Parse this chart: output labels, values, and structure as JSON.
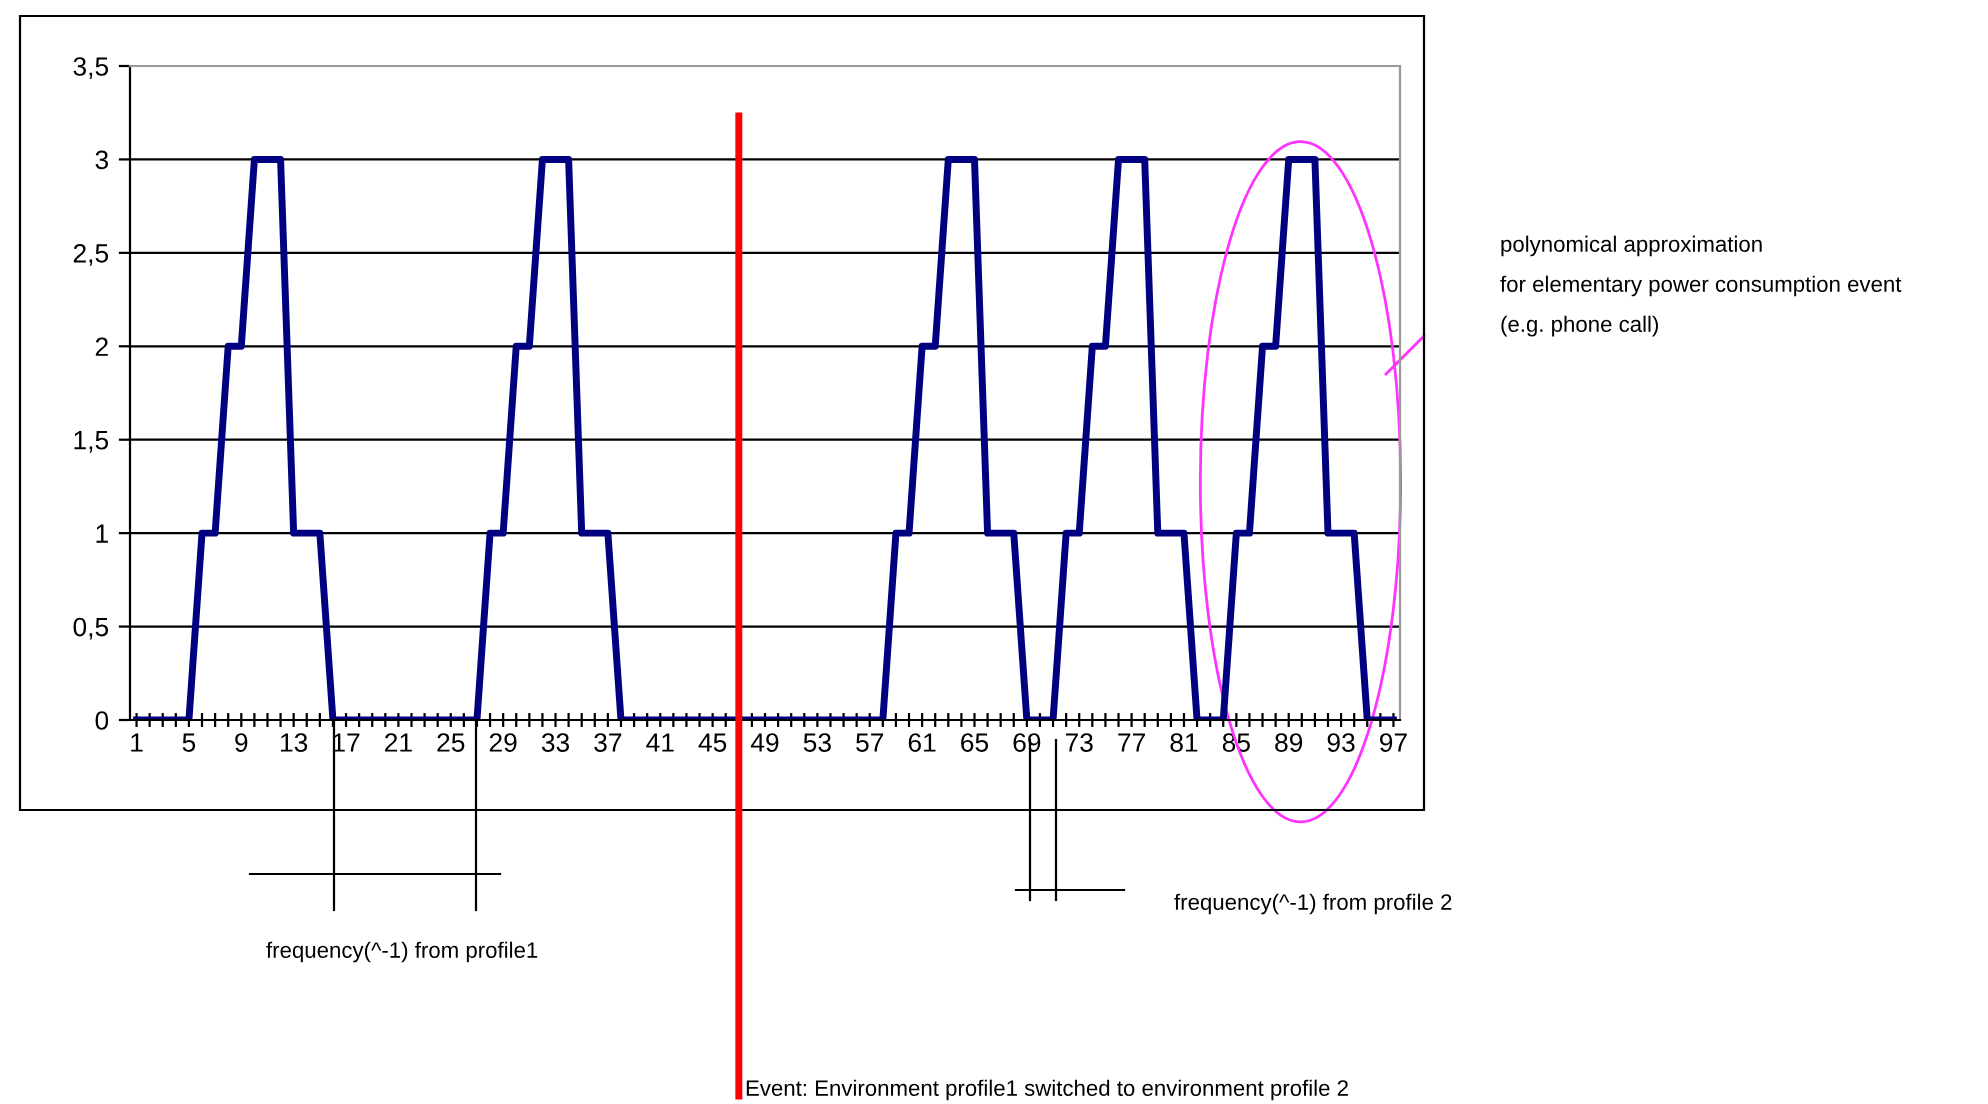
{
  "chart_data": {
    "type": "line",
    "x": [
      1,
      2,
      3,
      4,
      5,
      6,
      7,
      8,
      9,
      10,
      11,
      12,
      13,
      14,
      15,
      16,
      17,
      18,
      19,
      20,
      21,
      22,
      23,
      24,
      25,
      26,
      27,
      28,
      29,
      30,
      31,
      32,
      33,
      34,
      35,
      36,
      37,
      38,
      39,
      40,
      41,
      42,
      43,
      44,
      45,
      46,
      47,
      48,
      49,
      50,
      51,
      52,
      53,
      54,
      55,
      56,
      57,
      58,
      59,
      60,
      61,
      62,
      63,
      64,
      65,
      66,
      67,
      68,
      69,
      70,
      71,
      72,
      73,
      74,
      75,
      76,
      77,
      78,
      79,
      80,
      81,
      82,
      83,
      84,
      85,
      86,
      87,
      88,
      89,
      90,
      91,
      92,
      93,
      94,
      95,
      96,
      97
    ],
    "series": [
      {
        "color": "#000080",
        "values": [
          0,
          0,
          0,
          0,
          0,
          1,
          1,
          2,
          2,
          3,
          3,
          3,
          1,
          1,
          1,
          0,
          0,
          0,
          0,
          0,
          0,
          0,
          0,
          0,
          0,
          0,
          0,
          1,
          1,
          2,
          2,
          3,
          3,
          3,
          1,
          1,
          1,
          0,
          0,
          0,
          0,
          0,
          0,
          0,
          0,
          0,
          0,
          0,
          0,
          0,
          0,
          0,
          0,
          0,
          0,
          0,
          0,
          0,
          1,
          1,
          2,
          2,
          3,
          3,
          3,
          1,
          1,
          1,
          0,
          0,
          0,
          1,
          1,
          2,
          2,
          3,
          3,
          3,
          1,
          1,
          1,
          0,
          0,
          0,
          1,
          1,
          2,
          2,
          3,
          3,
          3,
          1,
          1,
          1,
          0,
          0,
          0
        ]
      }
    ],
    "xlim": [
      0.5,
      97.5
    ],
    "xticks": [
      1,
      {
        "value": 2,
        "label": null
      },
      {
        "value": 3,
        "label": null
      },
      {
        "value": 4,
        "label": null
      },
      5,
      {
        "value": 6,
        "label": null
      },
      {
        "value": 7,
        "label": null
      },
      {
        "value": 8,
        "label": null
      },
      9,
      {
        "value": 10,
        "label": null
      },
      {
        "value": 11,
        "label": null
      },
      {
        "value": 12,
        "label": null
      },
      13,
      {
        "value": 14,
        "label": null
      },
      {
        "value": 15,
        "label": null
      },
      {
        "value": 16,
        "label": null
      },
      17,
      {
        "value": 18,
        "label": null
      },
      {
        "value": 19,
        "label": null
      },
      {
        "value": 20,
        "label": null
      },
      21,
      {
        "value": 22,
        "label": null
      },
      {
        "value": 23,
        "label": null
      },
      {
        "value": 24,
        "label": null
      },
      25,
      {
        "value": 26,
        "label": null
      },
      {
        "value": 27,
        "label": null
      },
      {
        "value": 28,
        "label": null
      },
      29,
      {
        "value": 30,
        "label": null
      },
      {
        "value": 31,
        "label": null
      },
      {
        "value": 32,
        "label": null
      },
      33,
      {
        "value": 34,
        "label": null
      },
      {
        "value": 35,
        "label": null
      },
      {
        "value": 36,
        "label": null
      },
      37,
      {
        "value": 38,
        "label": null
      },
      {
        "value": 39,
        "label": null
      },
      {
        "value": 40,
        "label": null
      },
      41,
      {
        "value": 42,
        "label": null
      },
      {
        "value": 43,
        "label": null
      },
      {
        "value": 44,
        "label": null
      },
      45,
      {
        "value": 46,
        "label": null
      },
      {
        "value": 47,
        "label": null
      },
      {
        "value": 48,
        "label": null
      },
      49,
      {
        "value": 50,
        "label": null
      },
      {
        "value": 51,
        "label": null
      },
      {
        "value": 52,
        "label": null
      },
      53,
      {
        "value": 54,
        "label": null
      },
      {
        "value": 55,
        "label": null
      },
      {
        "value": 56,
        "label": null
      },
      57,
      {
        "value": 58,
        "label": null
      },
      {
        "value": 59,
        "label": null
      },
      {
        "value": 60,
        "label": null
      },
      61,
      {
        "value": 62,
        "label": null
      },
      {
        "value": 63,
        "label": null
      },
      {
        "value": 64,
        "label": null
      },
      65,
      {
        "value": 66,
        "label": null
      },
      {
        "value": 67,
        "label": null
      },
      {
        "value": 68,
        "label": null
      },
      69,
      {
        "value": 70,
        "label": null
      },
      {
        "value": 71,
        "label": null
      },
      {
        "value": 72,
        "label": null
      },
      73,
      {
        "value": 74,
        "label": null
      },
      {
        "value": 75,
        "label": null
      },
      {
        "value": 76,
        "label": null
      },
      77,
      {
        "value": 78,
        "label": null
      },
      {
        "value": 79,
        "label": null
      },
      {
        "value": 80,
        "label": null
      },
      81,
      {
        "value": 82,
        "label": null
      },
      {
        "value": 83,
        "label": null
      },
      {
        "value": 84,
        "label": null
      },
      85,
      {
        "value": 86,
        "label": null
      },
      {
        "value": 87,
        "label": null
      },
      {
        "value": 88,
        "label": null
      },
      89,
      {
        "value": 90,
        "label": null
      },
      {
        "value": 91,
        "label": null
      },
      {
        "value": 92,
        "label": null
      },
      93,
      {
        "value": 94,
        "label": null
      },
      {
        "value": 95,
        "label": null
      },
      {
        "value": 96,
        "label": null
      },
      97
    ],
    "ylim": [
      0,
      3.5
    ],
    "yticks": [
      0,
      {
        "value": 0.5,
        "label": "0,5"
      },
      1,
      {
        "value": 1.5,
        "label": "1,5"
      },
      2,
      {
        "value": 2.5,
        "label": "2,5"
      },
      3,
      {
        "value": 3.5,
        "label": "3,5"
      }
    ],
    "grid": "y",
    "legend": false,
    "marker": "none",
    "line_style": "solid",
    "ref_lines": [
      {
        "axis": "x",
        "value": 47,
        "label": "Event: Environment profile1 switched to environment profile 2",
        "color": "#ff0000"
      }
    ],
    "annotations": [
      "polynomical approximation\nfor elementary power consumption event\n(e.g. phone call)",
      "frequency(^-1) from profile1",
      "frequency(^-1) from profile 2"
    ]
  }
}
